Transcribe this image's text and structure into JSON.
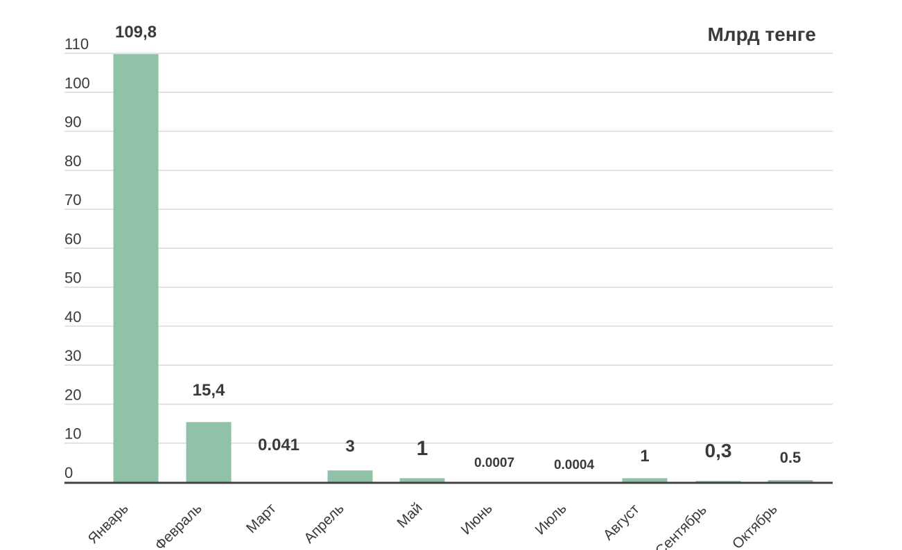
{
  "chart_data": {
    "type": "bar",
    "title": "",
    "unit_label": "Млрд тенге",
    "xlabel": "",
    "ylabel": "",
    "ylim": [
      0,
      110
    ],
    "yticks": [
      0,
      10,
      20,
      30,
      40,
      50,
      60,
      70,
      80,
      90,
      100,
      110
    ],
    "grid": true,
    "legend": "none",
    "bar_color": "#8fc2a7",
    "grid_color": "#d9d9d9",
    "axis_color": "#404040",
    "text_color": "#3a3a3a",
    "categories": [
      "Январь",
      "Февраль",
      "Март",
      "Апрель",
      "Май",
      "Июнь",
      "Июль",
      "Август",
      "Сентябрь",
      "Октябрь"
    ],
    "values": [
      109.8,
      15.4,
      0.041,
      3,
      1,
      0.0007,
      0.0004,
      1,
      0.3,
      0.5
    ],
    "data_labels": [
      "109,8",
      "15,4",
      "0.041",
      "3",
      "1",
      "0.0007",
      "0.0004",
      "1",
      "0,3",
      "0.5"
    ]
  }
}
